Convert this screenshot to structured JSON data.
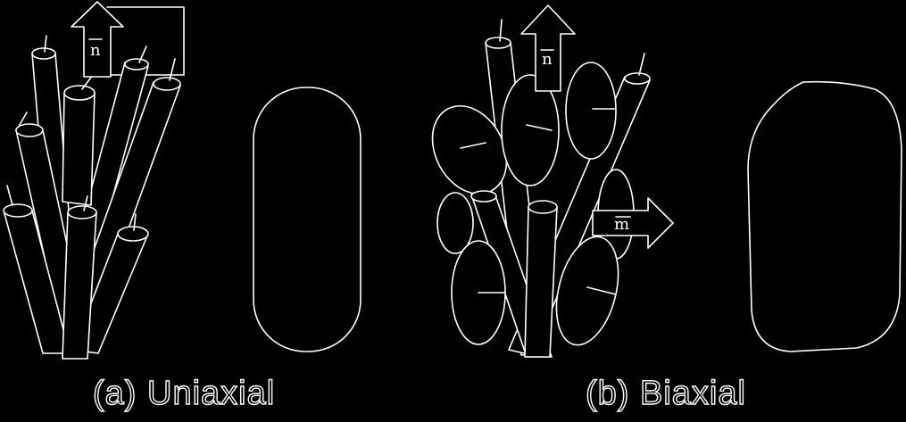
{
  "panels": [
    {
      "caption": "(a) Uniaxial",
      "director_label": "n"
    },
    {
      "caption": "(b) Biaxial",
      "director_label": "n",
      "secondary_label": "m"
    }
  ],
  "colors": {
    "background": "#000000",
    "line": "#ffffff"
  }
}
